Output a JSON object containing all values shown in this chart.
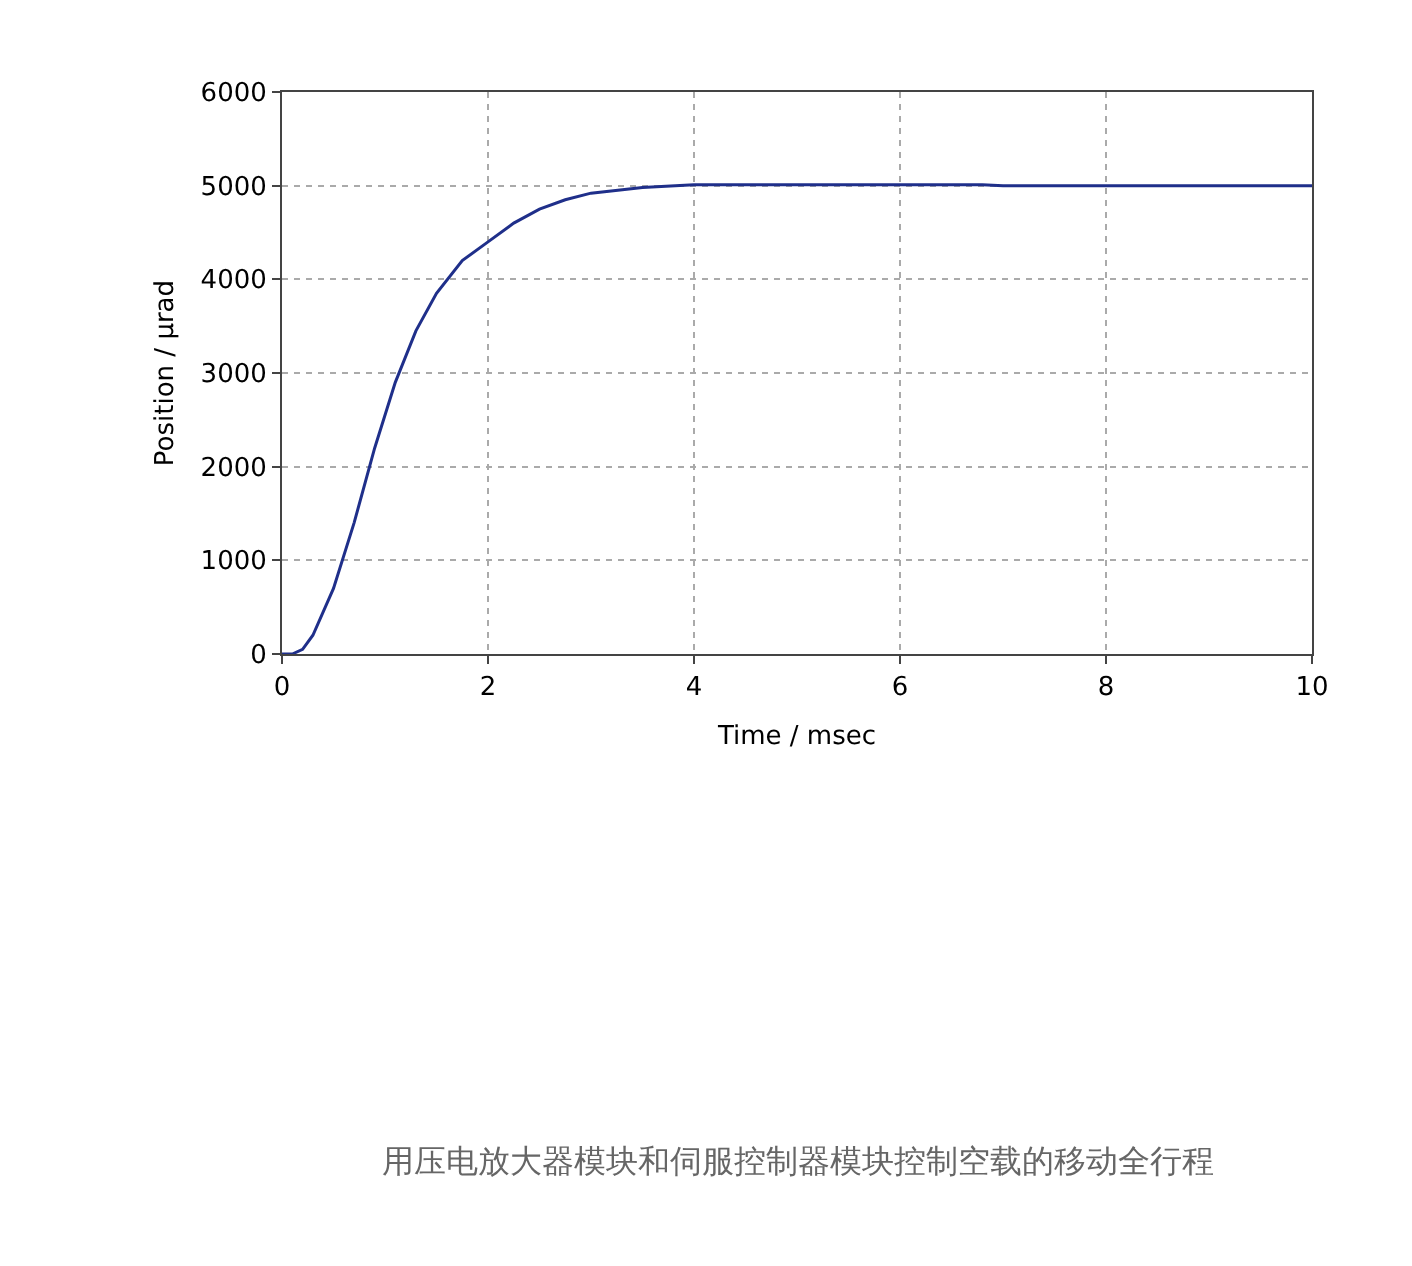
{
  "chart_data": {
    "type": "line",
    "xlabel": "Time / msec",
    "ylabel": "Position / µrad",
    "x": [
      0,
      0.1,
      0.2,
      0.3,
      0.5,
      0.7,
      0.9,
      1.1,
      1.3,
      1.5,
      1.75,
      2,
      2.25,
      2.5,
      2.75,
      3,
      3.5,
      4,
      5,
      6,
      6.8,
      7,
      8,
      10
    ],
    "series": [
      {
        "color": "#1f2f8a",
        "values": [
          0,
          0,
          50,
          200,
          700,
          1400,
          2200,
          2900,
          3450,
          3850,
          4200,
          4400,
          4600,
          4750,
          4850,
          4920,
          4980,
          5010,
          5010,
          5010,
          5010,
          5000,
          5000,
          5000
        ]
      }
    ],
    "xlim": [
      0,
      10
    ],
    "xticks": [
      0,
      2,
      4,
      6,
      8,
      10
    ],
    "ylim": [
      0,
      6000
    ],
    "yticks": [
      0,
      1000,
      2000,
      3000,
      4000,
      5000,
      6000
    ],
    "grid": true,
    "marker": "none",
    "line_style": "solid",
    "annotations": [
      "用压电放大器模块和伺服控制器模块控制空载的移动全行程"
    ]
  }
}
